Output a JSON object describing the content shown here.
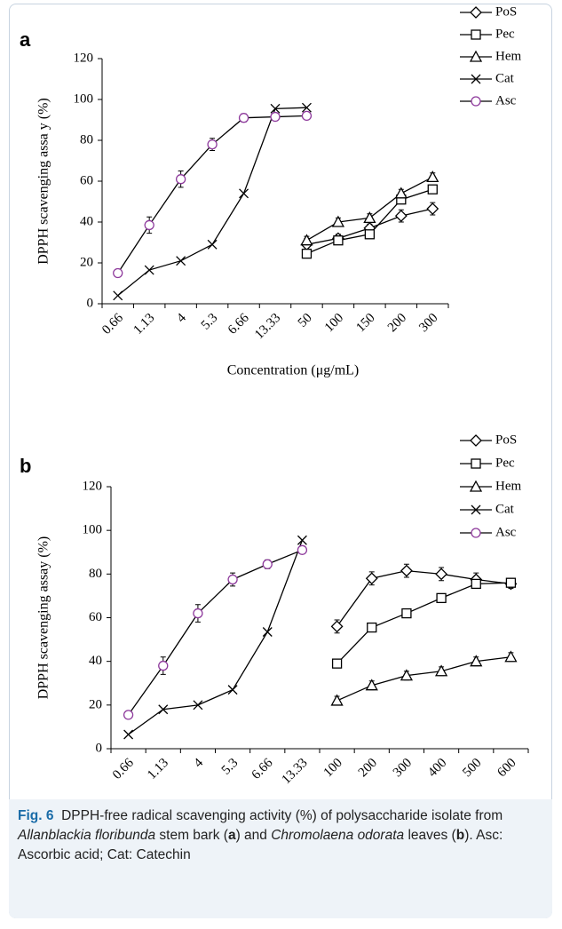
{
  "chart_data": [
    {
      "type": "line",
      "panel": "a",
      "y_label": "DPPH scavenging assa y (%)",
      "x_label": "Concentration (μg/mL)",
      "categories": [
        "0.66",
        "1.13",
        "4",
        "5.3",
        "6.66",
        "13.33",
        "50",
        "100",
        "150",
        "200",
        "300"
      ],
      "ylim": [
        0,
        120
      ],
      "yticks": [
        0,
        20,
        40,
        60,
        80,
        100,
        120
      ],
      "grid": false,
      "legend": "top-right",
      "series": [
        {
          "name": "PoS",
          "color": "#000000",
          "marker": "diamond",
          "values": [
            null,
            null,
            null,
            null,
            null,
            null,
            29,
            32,
            37,
            43,
            46.5
          ],
          "errors": [
            null,
            null,
            null,
            null,
            null,
            null,
            3,
            2,
            2,
            3,
            3
          ]
        },
        {
          "name": "Pec",
          "color": "#000000",
          "marker": "square",
          "values": [
            null,
            null,
            null,
            null,
            null,
            null,
            24.5,
            31,
            34,
            51,
            56
          ],
          "errors": [
            null,
            null,
            null,
            null,
            null,
            null,
            2,
            2,
            2,
            2,
            2
          ]
        },
        {
          "name": "Hem",
          "color": "#000000",
          "marker": "triangle",
          "values": [
            null,
            null,
            null,
            null,
            null,
            null,
            31,
            40,
            42,
            54,
            62
          ],
          "errors": [
            null,
            null,
            null,
            null,
            null,
            null,
            2,
            2,
            2,
            2,
            2
          ]
        },
        {
          "name": "Cat",
          "color": "#000000",
          "marker": "x",
          "values": [
            4,
            16.5,
            21,
            29,
            54,
            95.5,
            96,
            null,
            null,
            null,
            null
          ]
        },
        {
          "name": "Asc",
          "color": "#8e3a9c",
          "marker": "circle",
          "values": [
            15,
            38.5,
            61,
            78,
            91,
            91.5,
            92,
            null,
            null,
            null,
            null
          ],
          "errors": [
            1,
            4,
            4,
            3,
            2,
            1,
            1,
            null,
            null,
            null,
            null
          ]
        }
      ]
    },
    {
      "type": "line",
      "panel": "b",
      "y_label": "DPPH scavenging assay (%)",
      "x_label": "Concentration (μg/mL)",
      "categories": [
        "0.66",
        "1.13",
        "4",
        "5.3",
        "6.66",
        "13.33",
        "100",
        "200",
        "300",
        "400",
        "500",
        "600"
      ],
      "ylim": [
        0,
        120
      ],
      "yticks": [
        0,
        20,
        40,
        60,
        80,
        100,
        120
      ],
      "grid": false,
      "legend": "top-right",
      "series": [
        {
          "name": "PoS",
          "color": "#000000",
          "marker": "diamond",
          "values": [
            null,
            null,
            null,
            null,
            null,
            null,
            56,
            78,
            81.5,
            80,
            77.5,
            75.5
          ],
          "errors": [
            null,
            null,
            null,
            null,
            null,
            null,
            3,
            3,
            3,
            3,
            3,
            2
          ]
        },
        {
          "name": "Pec",
          "color": "#000000",
          "marker": "square",
          "values": [
            null,
            null,
            null,
            null,
            null,
            null,
            39,
            55.5,
            62,
            69,
            75.5,
            76
          ],
          "errors": [
            null,
            null,
            null,
            null,
            null,
            null,
            2,
            2,
            2,
            2,
            2,
            2
          ]
        },
        {
          "name": "Hem",
          "color": "#000000",
          "marker": "triangle",
          "values": [
            null,
            null,
            null,
            null,
            null,
            null,
            22,
            29,
            33.5,
            35.5,
            40,
            42
          ],
          "errors": [
            null,
            null,
            null,
            null,
            null,
            null,
            2,
            2,
            2,
            2,
            2,
            2
          ]
        },
        {
          "name": "Cat",
          "color": "#000000",
          "marker": "x",
          "values": [
            6.5,
            18,
            20,
            27,
            53.5,
            95.5,
            null,
            null,
            null,
            null,
            null,
            null
          ]
        },
        {
          "name": "Asc",
          "color": "#8e3a9c",
          "marker": "circle",
          "values": [
            15.5,
            38,
            62,
            77.5,
            84.5,
            91,
            null,
            null,
            null,
            null,
            null,
            null
          ],
          "errors": [
            1,
            4,
            4,
            3,
            2,
            1,
            null,
            null,
            null,
            null,
            null,
            null
          ]
        }
      ]
    }
  ],
  "caption": {
    "label": "Fig. 6",
    "segments": [
      "DPPH-free radical scavenging activity (%) of polysaccharide isolate from ",
      "Allanblackia floribunda",
      " stem bark (",
      "a",
      ") and ",
      "Chromolaena odorata",
      " leaves (",
      "b",
      "). Asc: Ascorbic acid; Cat: Catechin"
    ]
  }
}
